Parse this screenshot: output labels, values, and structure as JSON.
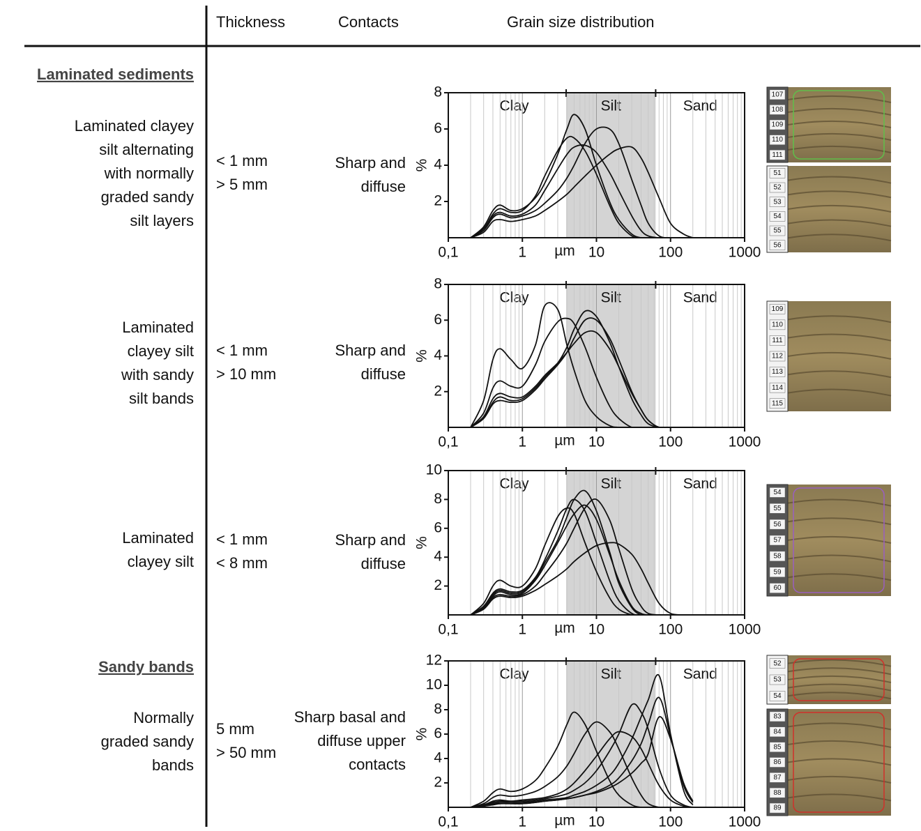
{
  "header": {
    "thickness": "Thickness",
    "contacts": "Contacts",
    "grain": "Grain size distribution"
  },
  "sections": [
    "Laminated sediments",
    "Sandy bands"
  ],
  "rows": [
    {
      "description": [
        "Laminated clayey",
        "silt alternating",
        "with normally",
        "graded sandy",
        "silt layers"
      ],
      "thickness": [
        "< 1 mm",
        "> 5 mm"
      ],
      "contacts": [
        "Sharp and",
        "diffuse"
      ]
    },
    {
      "description": [
        "Laminated",
        "clayey silt",
        "with sandy",
        "silt bands"
      ],
      "thickness": [
        "< 1 mm",
        "> 10 mm"
      ],
      "contacts": [
        "Sharp and",
        "diffuse"
      ]
    },
    {
      "description": [
        "Laminated",
        "clayey silt"
      ],
      "thickness": [
        "< 1 mm",
        "< 8 mm"
      ],
      "contacts": [
        "Sharp and",
        "diffuse"
      ]
    },
    {
      "description": [
        "Normally",
        "graded sandy",
        "bands"
      ],
      "thickness": [
        "5 mm",
        "> 50 mm"
      ],
      "contacts": [
        "Sharp basal and",
        "diffuse upper",
        "contacts"
      ]
    }
  ],
  "chart_data": [
    {
      "type": "line",
      "x_label": "µm",
      "y_label": "%",
      "log_x": true,
      "grid": true,
      "x": [
        0.2,
        0.3,
        0.4,
        0.5,
        0.7,
        1,
        1.5,
        2,
        3,
        4,
        5,
        7,
        10,
        15,
        20,
        30,
        40,
        50,
        70,
        100,
        150,
        200
      ],
      "xlim": [
        0.1,
        1000
      ],
      "xticks": [
        {
          "value": 0.1,
          "label": "0,1"
        },
        1,
        10,
        100,
        1000
      ],
      "ylim": [
        0,
        8
      ],
      "yticks": [
        2,
        4,
        6,
        8
      ],
      "zones": [
        {
          "label": "Clay",
          "from": 0.1,
          "to": 3.9
        },
        {
          "label": "Silt",
          "from": 3.9,
          "to": 63,
          "color": "#d4d4d4"
        },
        {
          "label": "Sand",
          "from": 63,
          "to": 1000
        }
      ],
      "series": [
        {
          "color": "#111111",
          "values": [
            0,
            0.6,
            1.5,
            1.8,
            1.5,
            1.6,
            2.2,
            3.0,
            4.6,
            6.0,
            6.8,
            6.0,
            4.0,
            2.0,
            1.0,
            0.2,
            0,
            0,
            0,
            0,
            0,
            0
          ]
        },
        {
          "color": "#111111",
          "values": [
            0,
            0.4,
            1.1,
            1.3,
            1.1,
            1.2,
            1.5,
            1.9,
            2.6,
            3.3,
            4.0,
            5.2,
            6.0,
            6.0,
            5.2,
            3.2,
            1.8,
            0.8,
            0.1,
            0,
            0,
            0
          ]
        },
        {
          "color": "#111111",
          "values": [
            0,
            0.3,
            0.9,
            1.0,
            0.9,
            1.0,
            1.2,
            1.5,
            2.0,
            2.4,
            2.8,
            3.4,
            4.0,
            4.6,
            4.9,
            5.0,
            4.4,
            3.6,
            2.2,
            0.8,
            0.2,
            0
          ]
        },
        {
          "color": "#111111",
          "values": [
            0,
            0.5,
            1.3,
            1.6,
            1.4,
            1.5,
            2.3,
            3.4,
            4.8,
            5.5,
            5.5,
            4.8,
            3.5,
            1.8,
            0.8,
            0.1,
            0,
            0,
            0,
            0,
            0,
            0
          ]
        },
        {
          "color": "#111111",
          "values": [
            0,
            0.5,
            1.2,
            1.4,
            1.2,
            1.3,
            1.8,
            2.6,
            3.8,
            4.6,
            5.0,
            5.1,
            4.7,
            3.6,
            2.6,
            1.2,
            0.4,
            0.1,
            0,
            0,
            0,
            0
          ]
        }
      ]
    },
    {
      "type": "line",
      "x_label": "µm",
      "y_label": "%",
      "log_x": true,
      "grid": true,
      "x": [
        0.2,
        0.3,
        0.4,
        0.5,
        0.7,
        1,
        1.5,
        2,
        3,
        4,
        5,
        7,
        10,
        15,
        20,
        30,
        40,
        50,
        70,
        100,
        150,
        200
      ],
      "xlim": [
        0.1,
        1000
      ],
      "xticks": [
        {
          "value": 0.1,
          "label": "0,1"
        },
        1,
        10,
        100,
        1000
      ],
      "ylim": [
        0,
        8
      ],
      "yticks": [
        2,
        4,
        6,
        8
      ],
      "zones": [
        {
          "label": "Clay",
          "from": 0.1,
          "to": 3.9
        },
        {
          "label": "Silt",
          "from": 3.9,
          "to": 63,
          "color": "#d4d4d4"
        },
        {
          "label": "Sand",
          "from": 63,
          "to": 1000
        }
      ],
      "series": [
        {
          "color": "#111111",
          "values": [
            0,
            1.5,
            3.8,
            4.4,
            3.8,
            3.3,
            4.6,
            6.8,
            6.6,
            4.6,
            3.2,
            1.5,
            0.6,
            0.1,
            0,
            0,
            0,
            0,
            0,
            0,
            0,
            0
          ]
        },
        {
          "color": "#111111",
          "values": [
            0,
            0.8,
            2.2,
            2.6,
            2.3,
            2.3,
            3.5,
            4.8,
            5.9,
            6.1,
            5.8,
            4.5,
            2.8,
            1.2,
            0.5,
            0,
            0,
            0,
            0,
            0,
            0,
            0
          ]
        },
        {
          "color": "#111111",
          "values": [
            0,
            0.5,
            1.4,
            1.7,
            1.5,
            1.6,
            2.2,
            2.8,
            3.6,
            4.5,
            5.5,
            6.5,
            6.2,
            4.8,
            3.4,
            1.6,
            0.7,
            0.2,
            0,
            0,
            0,
            0
          ]
        },
        {
          "color": "#111111",
          "values": [
            0,
            0.5,
            1.3,
            1.5,
            1.4,
            1.5,
            2.1,
            2.7,
            3.5,
            4.2,
            5.0,
            6.0,
            6.0,
            5.0,
            3.8,
            2.0,
            1.0,
            0.4,
            0,
            0,
            0,
            0
          ]
        },
        {
          "color": "#111111",
          "values": [
            0,
            0.6,
            1.6,
            1.9,
            1.7,
            1.7,
            2.3,
            2.9,
            3.6,
            4.2,
            4.7,
            5.3,
            5.3,
            4.4,
            3.4,
            1.9,
            1.0,
            0.4,
            0,
            0,
            0,
            0
          ]
        }
      ]
    },
    {
      "type": "line",
      "x_label": "µm",
      "y_label": "%",
      "log_x": true,
      "grid": true,
      "x": [
        0.2,
        0.3,
        0.4,
        0.5,
        0.7,
        1,
        1.5,
        2,
        3,
        4,
        5,
        7,
        10,
        15,
        20,
        30,
        40,
        50,
        70,
        100,
        150,
        200
      ],
      "xlim": [
        0.1,
        1000
      ],
      "xticks": [
        {
          "value": 0.1,
          "label": "0,1"
        },
        1,
        10,
        100,
        1000
      ],
      "ylim": [
        0,
        10
      ],
      "yticks": [
        2,
        4,
        6,
        8,
        10
      ],
      "zones": [
        {
          "label": "Clay",
          "from": 0.1,
          "to": 3.9
        },
        {
          "label": "Silt",
          "from": 3.9,
          "to": 63,
          "color": "#d4d4d4"
        },
        {
          "label": "Sand",
          "from": 63,
          "to": 1000
        }
      ],
      "series": [
        {
          "color": "#111111",
          "values": [
            0,
            0.8,
            2.0,
            2.4,
            2.0,
            2.0,
            3.2,
            4.8,
            6.8,
            7.4,
            7.0,
            5.0,
            3.0,
            1.2,
            0.4,
            0,
            0,
            0,
            0,
            0,
            0,
            0
          ]
        },
        {
          "color": "#111111",
          "values": [
            0,
            0.5,
            1.4,
            1.7,
            1.5,
            1.6,
            2.5,
            3.6,
            5.2,
            6.8,
            8.0,
            8.6,
            7.2,
            4.4,
            2.2,
            0.5,
            0,
            0,
            0,
            0,
            0,
            0
          ]
        },
        {
          "color": "#111111",
          "values": [
            0,
            0.4,
            1.2,
            1.4,
            1.3,
            1.4,
            2.0,
            2.8,
            4.0,
            5.0,
            6.0,
            7.4,
            8.0,
            6.6,
            4.6,
            1.8,
            0.6,
            0.1,
            0,
            0,
            0,
            0
          ]
        },
        {
          "color": "#111111",
          "values": [
            0,
            0.4,
            1.1,
            1.3,
            1.2,
            1.3,
            1.7,
            2.1,
            2.7,
            3.2,
            3.7,
            4.3,
            4.8,
            5.0,
            4.9,
            4.2,
            3.2,
            2.2,
            0.8,
            0.1,
            0,
            0
          ]
        },
        {
          "color": "#111111",
          "values": [
            0,
            0.6,
            1.5,
            1.8,
            1.6,
            1.7,
            2.6,
            3.8,
            5.8,
            7.4,
            8.0,
            7.2,
            5.0,
            2.4,
            1.0,
            0.1,
            0,
            0,
            0,
            0,
            0,
            0
          ]
        },
        {
          "color": "#111111",
          "values": [
            0,
            0.5,
            1.3,
            1.6,
            1.4,
            1.5,
            2.4,
            3.4,
            5.0,
            6.2,
            7.0,
            7.6,
            6.6,
            4.2,
            2.4,
            0.6,
            0.1,
            0,
            0,
            0,
            0,
            0
          ]
        }
      ]
    },
    {
      "type": "line",
      "x_label": "µm",
      "y_label": "%",
      "log_x": true,
      "grid": true,
      "x": [
        0.2,
        0.3,
        0.4,
        0.5,
        0.7,
        1,
        1.5,
        2,
        3,
        4,
        5,
        7,
        10,
        15,
        20,
        30,
        40,
        50,
        70,
        100,
        150,
        200
      ],
      "xlim": [
        0.1,
        1000
      ],
      "xticks": [
        {
          "value": 0.1,
          "label": "0,1"
        },
        1,
        10,
        100,
        1000
      ],
      "ylim": [
        0,
        12
      ],
      "yticks": [
        2,
        4,
        6,
        8,
        10,
        12
      ],
      "zones": [
        {
          "label": "Clay",
          "from": 0.1,
          "to": 3.9
        },
        {
          "label": "Silt",
          "from": 3.9,
          "to": 63,
          "color": "#d4d4d4"
        },
        {
          "label": "Sand",
          "from": 63,
          "to": 1000
        }
      ],
      "series": [
        {
          "color": "#111111",
          "values": [
            0,
            0.5,
            1.2,
            1.5,
            1.3,
            1.5,
            2.2,
            3.2,
            5.0,
            6.8,
            7.8,
            6.8,
            4.6,
            2.2,
            1.0,
            0.2,
            0,
            0,
            0,
            0,
            0,
            0
          ]
        },
        {
          "color": "#111111",
          "values": [
            0,
            0.3,
            0.8,
            1.0,
            0.9,
            1.0,
            1.3,
            1.7,
            2.5,
            3.4,
            4.4,
            6.0,
            7.0,
            6.2,
            4.8,
            2.4,
            1.0,
            0.3,
            0,
            0,
            0,
            0
          ]
        },
        {
          "color": "#111111",
          "values": [
            0,
            0.2,
            0.5,
            0.6,
            0.5,
            0.6,
            0.7,
            0.8,
            1.1,
            1.5,
            2.0,
            3.0,
            4.2,
            5.6,
            6.2,
            5.8,
            4.8,
            3.6,
            1.8,
            0.6,
            0.1,
            0
          ]
        },
        {
          "color": "#111111",
          "values": [
            0,
            0.2,
            0.4,
            0.5,
            0.5,
            0.5,
            0.6,
            0.7,
            0.9,
            1.1,
            1.4,
            2.0,
            3.0,
            4.6,
            6.0,
            8.4,
            7.8,
            6.4,
            3.2,
            1.0,
            0.2,
            0
          ]
        },
        {
          "color": "#111111",
          "values": [
            0,
            0.1,
            0.3,
            0.4,
            0.4,
            0.4,
            0.5,
            0.6,
            0.7,
            0.8,
            1.0,
            1.3,
            1.8,
            2.6,
            3.6,
            5.6,
            7.4,
            8.8,
            10.8,
            6.0,
            1.4,
            0.2
          ]
        },
        {
          "color": "#111111",
          "values": [
            0,
            0.1,
            0.3,
            0.3,
            0.3,
            0.3,
            0.4,
            0.5,
            0.6,
            0.7,
            0.8,
            1.0,
            1.3,
            1.8,
            2.4,
            3.8,
            5.2,
            6.8,
            9.0,
            5.8,
            1.8,
            0.4
          ]
        },
        {
          "color": "#111111",
          "values": [
            0,
            0.1,
            0.2,
            0.3,
            0.3,
            0.3,
            0.4,
            0.5,
            0.6,
            0.7,
            0.8,
            1.0,
            1.2,
            1.6,
            2.0,
            2.8,
            3.6,
            4.4,
            7.4,
            5.6,
            2.0,
            0.5
          ]
        }
      ]
    }
  ],
  "core_photos": [
    {
      "labels": [
        "107",
        "108",
        "109",
        "110",
        "111"
      ]
    },
    {
      "labels": [
        "51",
        "52",
        "53",
        "54",
        "55",
        "56"
      ]
    },
    {
      "labels": [
        "109",
        "110",
        "111",
        "112",
        "113",
        "114",
        "115"
      ]
    },
    {
      "labels": [
        "54",
        "55",
        "56",
        "57",
        "58",
        "59",
        "60"
      ]
    },
    {
      "labels": [
        "52",
        "53",
        "54"
      ]
    },
    {
      "labels": [
        "83",
        "84",
        "85",
        "86",
        "87",
        "88",
        "89"
      ]
    }
  ]
}
